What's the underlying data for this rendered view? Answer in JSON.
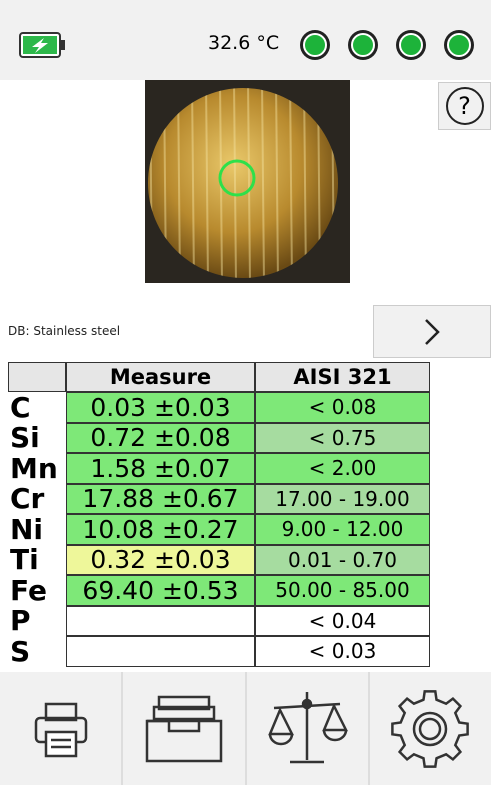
{
  "status_bar": {
    "temperature": "32.6 °C",
    "indicators": [
      {
        "color": "#1db33a"
      },
      {
        "color": "#1db33a"
      },
      {
        "color": "#1db33a"
      },
      {
        "color": "#1db33a"
      }
    ]
  },
  "help_button": {
    "label": "?"
  },
  "database": "DB: Stainless steel",
  "table": {
    "header": {
      "measure": "Measure",
      "grade": "AISI 321"
    },
    "rows": [
      {
        "element": "C",
        "measure": "0.03 ±0.03",
        "spec": "< 0.08",
        "measure_color": "#7ee878",
        "spec_color": "#7ee878"
      },
      {
        "element": "Si",
        "measure": "0.72 ±0.08",
        "spec": "< 0.75",
        "measure_color": "#7ee878",
        "spec_color": "#a6dca0"
      },
      {
        "element": "Mn",
        "measure": "1.58 ±0.07",
        "spec": "< 2.00",
        "measure_color": "#7ee878",
        "spec_color": "#7ee878"
      },
      {
        "element": "Cr",
        "measure": "17.88 ±0.67",
        "spec": "17.00 - 19.00",
        "measure_color": "#7ee878",
        "spec_color": "#a6dca0"
      },
      {
        "element": "Ni",
        "measure": "10.08 ±0.27",
        "spec": "9.00 - 12.00",
        "measure_color": "#7ee878",
        "spec_color": "#7ee878"
      },
      {
        "element": "Ti",
        "measure": "0.32 ±0.03",
        "spec": "0.01 - 0.70",
        "measure_color": "#eef79a",
        "spec_color": "#a6dca0"
      },
      {
        "element": "Fe",
        "measure": "69.40 ±0.53",
        "spec": "50.00 - 85.00",
        "measure_color": "#7ee878",
        "spec_color": "#7ee878"
      },
      {
        "element": "P",
        "measure": null,
        "spec": "< 0.04",
        "measure_color": "#ffffff",
        "spec_color": "#ffffff"
      },
      {
        "element": "S",
        "measure": null,
        "spec": "< 0.03",
        "measure_color": "#ffffff",
        "spec_color": "#ffffff"
      }
    ]
  }
}
